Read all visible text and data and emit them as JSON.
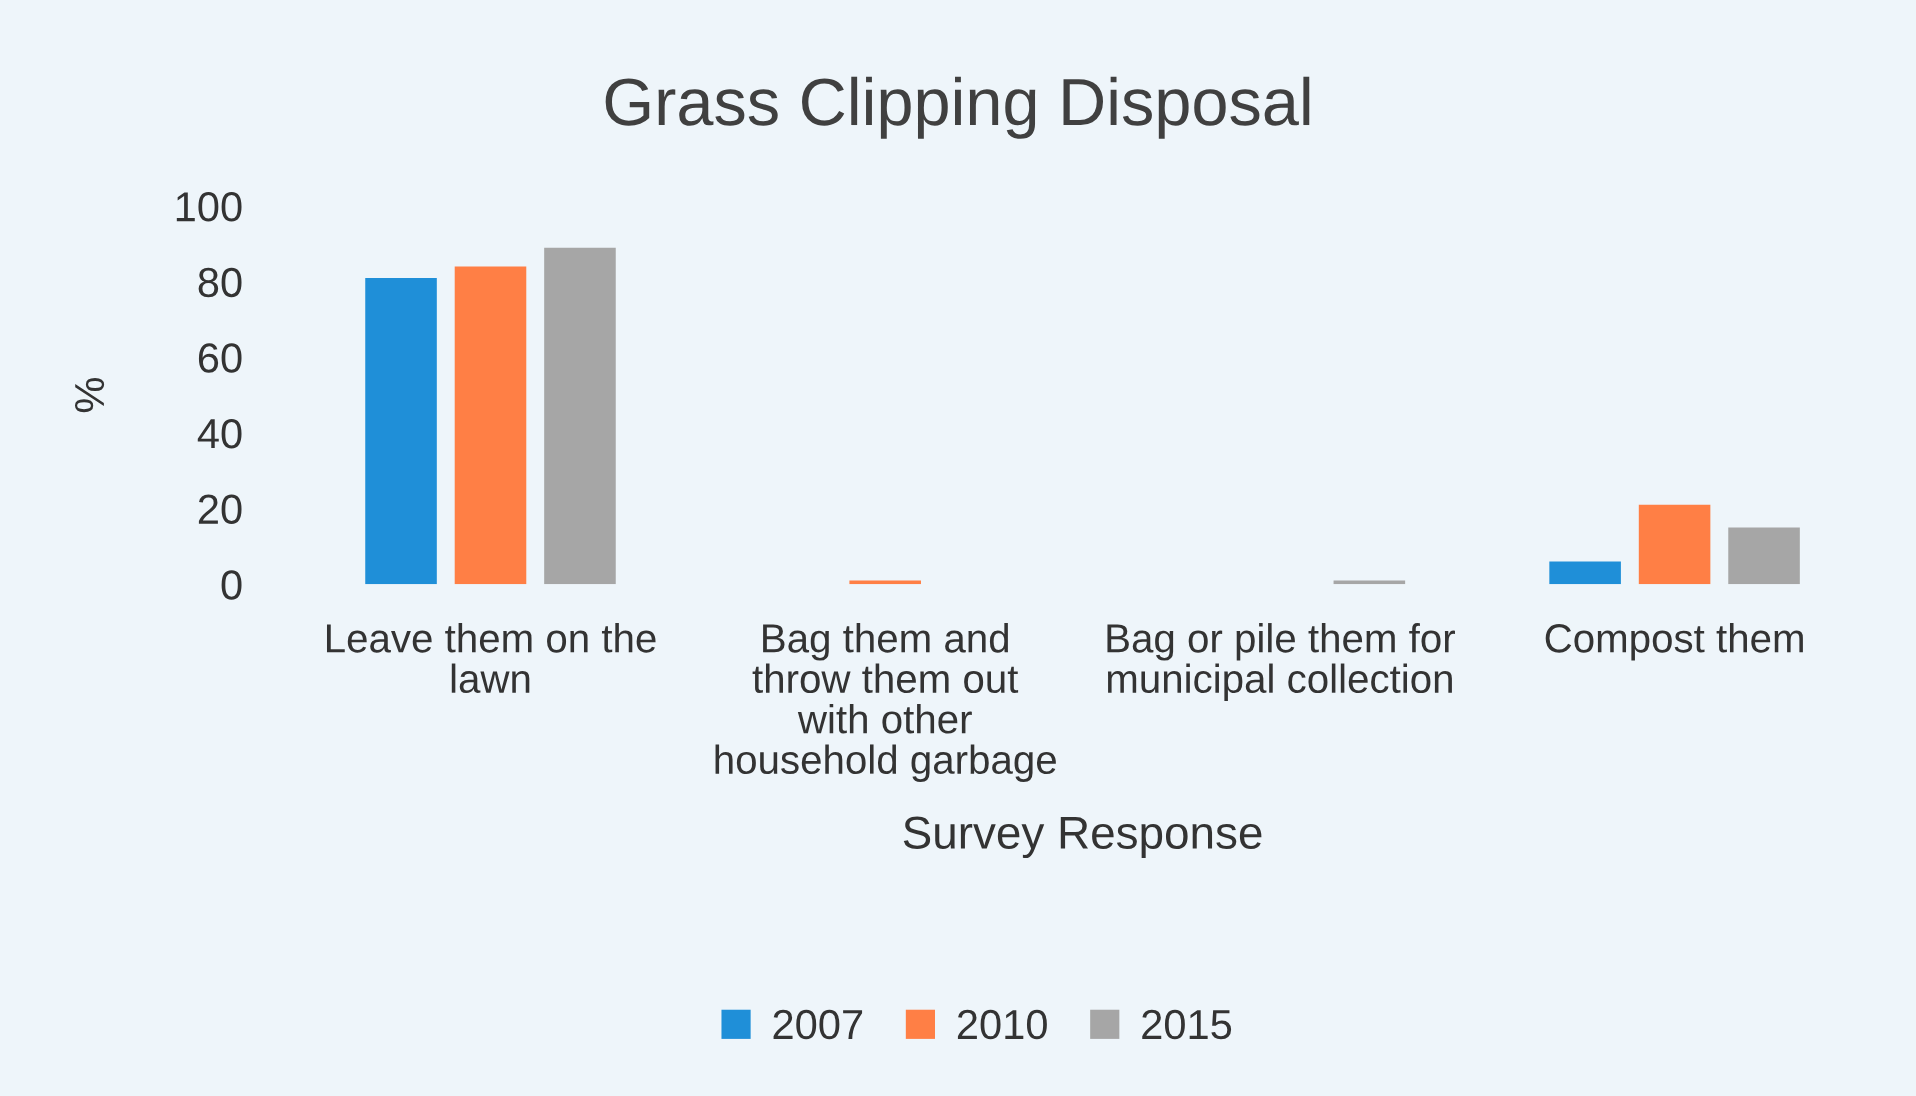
{
  "chart_data": {
    "type": "bar",
    "title": "Grass Clipping Disposal",
    "xlabel": "Survey Response",
    "ylabel": "%",
    "categories": [
      "Leave them on the\nlawn",
      "Bag them and\nthrow them out\nwith other\nhousehold garbage",
      "Bag or pile them for\nmunicipal collection",
      "Compost them"
    ],
    "series": [
      {
        "name": "2007",
        "color": "#1f8fd8",
        "values": [
          81,
          0,
          0,
          6
        ]
      },
      {
        "name": "2010",
        "color": "#ff7f45",
        "values": [
          84,
          1,
          0,
          21
        ]
      },
      {
        "name": "2015",
        "color": "#a6a6a6",
        "values": [
          89,
          0,
          1,
          15
        ]
      }
    ],
    "ylim": [
      0,
      100
    ],
    "yticks": [
      0,
      20,
      40,
      60,
      80,
      100
    ],
    "grid": false,
    "legend": "bottom"
  }
}
